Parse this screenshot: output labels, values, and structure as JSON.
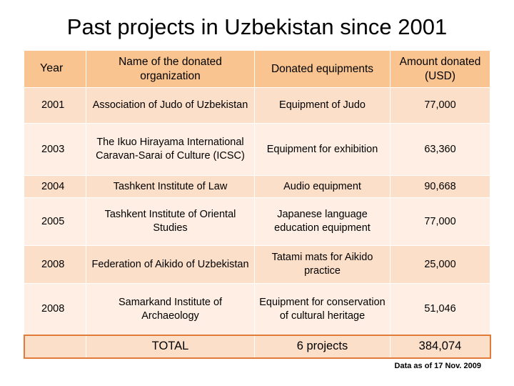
{
  "title": "Past projects in Uzbekistan since 2001",
  "table": {
    "headers": {
      "year": "Year",
      "organization": "Name of the donated organization",
      "equipment": "Donated equipments",
      "amount": "Amount donated (USD)"
    },
    "rows": [
      {
        "year": "2001",
        "organization": "Association of Judo of Uzbekistan",
        "equipment": "Equipment of Judo",
        "amount": "77,000"
      },
      {
        "year": "2003",
        "organization": "The Ikuo Hirayama International Caravan-Sarai of Culture (ICSC)",
        "equipment": "Equipment for exhibition",
        "amount": "63,360"
      },
      {
        "year": "2004",
        "organization": "Tashkent Institute of Law",
        "equipment": "Audio equipment",
        "amount": "90,668"
      },
      {
        "year": "2005",
        "organization": "Tashkent Institute of Oriental Studies",
        "equipment": "Japanese language education equipment",
        "amount": "77,000"
      },
      {
        "year": "2008",
        "organization": "Federation of Aikido of Uzbekistan",
        "equipment": "Tatami mats for Aikido practice",
        "amount": "25,000"
      },
      {
        "year": "2008",
        "organization": "Samarkand Institute of Archaeology",
        "equipment": "Equipment for conservation of cultural heritage",
        "amount": "51,046"
      }
    ],
    "total": {
      "label": "TOTAL",
      "projects": "6 projects",
      "amount": "384,074"
    }
  },
  "note": "Data as of 17 Nov. 2009"
}
